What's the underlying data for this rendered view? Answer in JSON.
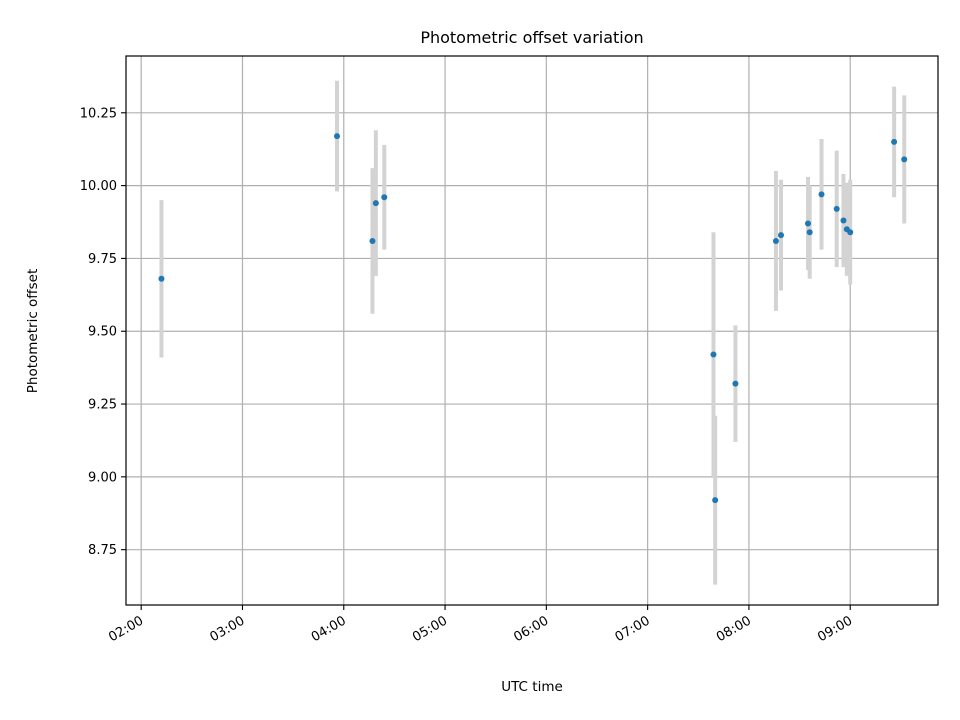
{
  "chart_data": {
    "type": "scatter",
    "title": "Photometric offset variation",
    "xlabel": "UTC time",
    "ylabel": "Photometric offset",
    "x_unit": "UTC time (HH:MM)",
    "xlim": [
      "01:51",
      "09:52"
    ],
    "ylim": [
      8.56,
      10.445
    ],
    "xticks": [
      "02:00",
      "03:00",
      "04:00",
      "05:00",
      "06:00",
      "07:00",
      "08:00",
      "09:00"
    ],
    "yticks": [
      8.75,
      9.0,
      9.25,
      9.5,
      9.75,
      10.0,
      10.25
    ],
    "ytick_labels": [
      "8.75",
      "9.00",
      "9.25",
      "9.50",
      "9.75",
      "10.00",
      "10.25"
    ],
    "grid": true,
    "legend": "none",
    "colors": {
      "point": "#1f77b4",
      "errorbar": "#d3d3d3",
      "grid": "#b0b0b0"
    },
    "points": [
      {
        "x": "02:12",
        "y": 9.68,
        "err": 0.27
      },
      {
        "x": "03:56",
        "y": 10.17,
        "err": 0.19
      },
      {
        "x": "04:17",
        "y": 9.81,
        "err": 0.25
      },
      {
        "x": "04:19",
        "y": 9.94,
        "err": 0.25
      },
      {
        "x": "04:24",
        "y": 9.96,
        "err": 0.18
      },
      {
        "x": "07:39",
        "y": 9.42,
        "err": 0.42
      },
      {
        "x": "07:40",
        "y": 8.92,
        "err": 0.29
      },
      {
        "x": "07:52",
        "y": 9.32,
        "err": 0.2
      },
      {
        "x": "08:16",
        "y": 9.81,
        "err": 0.24
      },
      {
        "x": "08:19",
        "y": 9.83,
        "err": 0.19
      },
      {
        "x": "08:35",
        "y": 9.87,
        "err": 0.16
      },
      {
        "x": "08:36",
        "y": 9.84,
        "err": 0.16
      },
      {
        "x": "08:43",
        "y": 9.97,
        "err": 0.19
      },
      {
        "x": "08:52",
        "y": 9.92,
        "err": 0.2
      },
      {
        "x": "08:56",
        "y": 9.88,
        "err": 0.16
      },
      {
        "x": "08:58",
        "y": 9.85,
        "err": 0.16
      },
      {
        "x": "09:00",
        "y": 9.84,
        "err": 0.18
      },
      {
        "x": "09:26",
        "y": 10.15,
        "err": 0.19
      },
      {
        "x": "09:32",
        "y": 10.09,
        "err": 0.22
      }
    ]
  }
}
